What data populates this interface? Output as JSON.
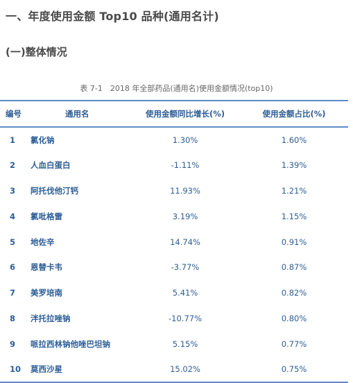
{
  "heading1": "一、年度使用金额 Top10 品种(通用名计)",
  "heading2": "(一)整体情况",
  "caption": "表 7-1　2018 年全部药品(通用名)使用金额情况(top10)",
  "table": {
    "headers": [
      "编号",
      "通用名",
      "使用金额同比增长(%)",
      "使用金额占比(%)"
    ],
    "rows": [
      {
        "num": "1",
        "name": "氯化钠",
        "growth": "1.30%",
        "share": "1.60%"
      },
      {
        "num": "2",
        "name": "人血白蛋白",
        "growth": "-1.11%",
        "share": "1.39%"
      },
      {
        "num": "3",
        "name": "阿托伐他汀钙",
        "growth": "11.93%",
        "share": "1.21%"
      },
      {
        "num": "4",
        "name": "氯吡格雷",
        "growth": "3.19%",
        "share": "1.15%"
      },
      {
        "num": "5",
        "name": "地佐辛",
        "growth": "14.74%",
        "share": "0.91%"
      },
      {
        "num": "6",
        "name": "恩替卡韦",
        "growth": "-3.77%",
        "share": "0.87%"
      },
      {
        "num": "7",
        "name": "美罗培南",
        "growth": "5.41%",
        "share": "0.82%"
      },
      {
        "num": "8",
        "name": "泮托拉唑钠",
        "growth": "-10.77%",
        "share": "0.80%"
      },
      {
        "num": "9",
        "name": "哌拉西林钠他唑巴坦钠",
        "growth": "5.15%",
        "share": "0.77%"
      },
      {
        "num": "10",
        "name": "莫西沙星",
        "growth": "15.02%",
        "share": "0.75%"
      }
    ]
  },
  "colors": {
    "accent": "#2d5d96",
    "rule": "#5b8bc7",
    "heading": "#4a4a4a"
  }
}
